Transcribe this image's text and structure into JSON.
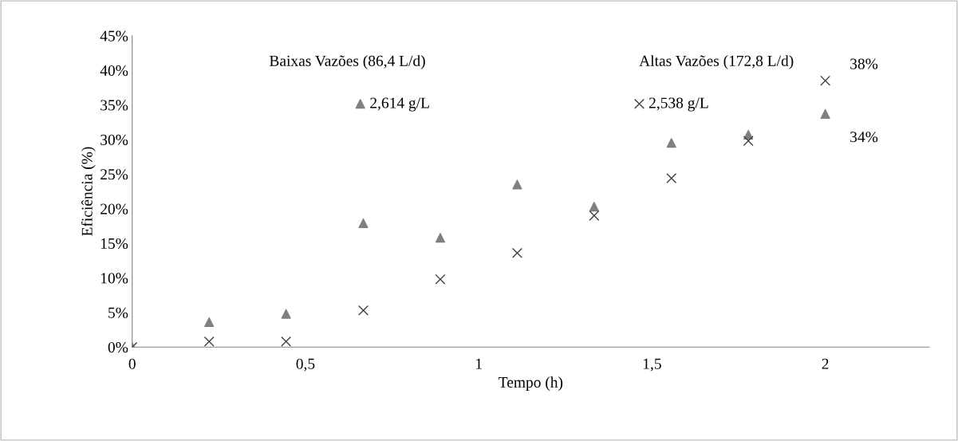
{
  "chart_data": {
    "type": "scatter",
    "xlabel": "Tempo (h)",
    "ylabel": "Eficiência (%)",
    "annotations": [
      "Baixas Vazões (86,4 L/d)",
      "Altas Vazões (172,8 L/d)"
    ],
    "legend": "top",
    "xlim": [
      0,
      2.3
    ],
    "xticks": [
      0,
      {
        "value": 0.5,
        "label": "0,5"
      },
      1,
      {
        "value": 1.5,
        "label": "1,5"
      },
      2
    ],
    "ylim": [
      0,
      45
    ],
    "yticks": [
      {
        "value": 0,
        "label": "0%"
      },
      {
        "value": 5,
        "label": "5%"
      },
      {
        "value": 10,
        "label": "10%"
      },
      {
        "value": 15,
        "label": "15%"
      },
      {
        "value": 20,
        "label": "20%"
      },
      {
        "value": 25,
        "label": "25%"
      },
      {
        "value": 30,
        "label": "30%"
      },
      {
        "value": 35,
        "label": "35%"
      },
      {
        "value": 40,
        "label": "40%"
      },
      {
        "value": 45,
        "label": "45%"
      }
    ],
    "grid": false,
    "series": [
      {
        "name": "2,614 g/L",
        "color": "#808080",
        "marker": "triangle",
        "x": [
          0,
          0.222,
          0.444,
          0.667,
          0.889,
          1.111,
          1.333,
          1.556,
          1.778,
          2.0
        ],
        "values": [
          0,
          3.6,
          4.8,
          17.9,
          15.8,
          23.5,
          20.3,
          29.5,
          30.7,
          33.7
        ],
        "value_labels": [
          null,
          null,
          null,
          null,
          null,
          null,
          null,
          null,
          null,
          "34%"
        ]
      },
      {
        "name": "2,538 g/L",
        "color": "#404040",
        "marker": "cross",
        "x": [
          0,
          0.222,
          0.444,
          0.667,
          0.889,
          1.111,
          1.333,
          1.556,
          1.778,
          2.0
        ],
        "values": [
          0,
          0.8,
          0.8,
          5.3,
          9.8,
          13.6,
          19.0,
          24.4,
          29.8,
          38.5
        ],
        "value_labels": [
          null,
          null,
          null,
          null,
          null,
          null,
          null,
          null,
          null,
          "38%"
        ]
      }
    ]
  }
}
